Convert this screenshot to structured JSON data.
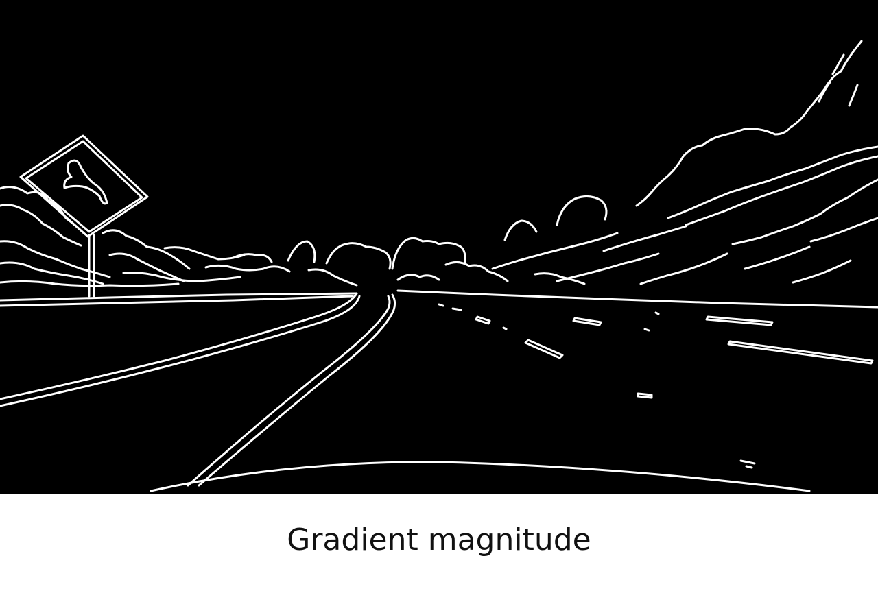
{
  "figure": {
    "caption": "Gradient magnitude",
    "background_color": "#000000",
    "edge_color": "#ffffff",
    "content": "binary edge map of a road scene"
  },
  "page": {
    "background_color": "#ffffff"
  }
}
